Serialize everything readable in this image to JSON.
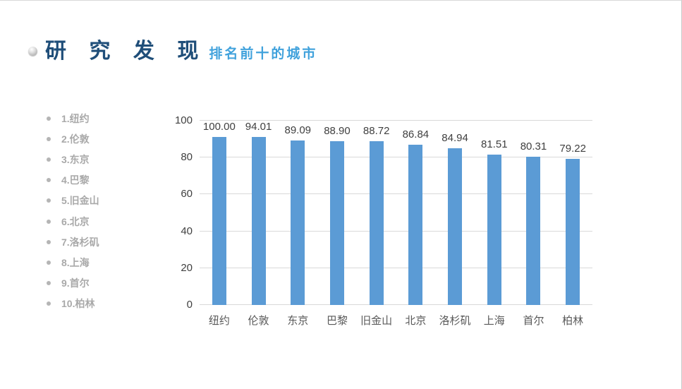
{
  "slide": {
    "title": "研 究 发 现",
    "subtitle": "排名前十的城市"
  },
  "sidebar": {
    "items": [
      "1.纽约",
      "2.伦敦",
      "3.东京",
      "4.巴黎",
      "5.旧金山",
      "6.北京",
      "7.洛杉矶",
      "8.上海",
      "9.首尔",
      "10.柏林"
    ]
  },
  "chart_data": {
    "type": "bar",
    "categories": [
      "纽约",
      "伦敦",
      "东京",
      "巴黎",
      "旧金山",
      "北京",
      "洛杉矶",
      "上海",
      "首尔",
      "柏林"
    ],
    "values": [
      100.0,
      94.01,
      89.09,
      88.9,
      88.72,
      86.84,
      84.94,
      81.51,
      80.31,
      79.22
    ],
    "value_labels": [
      "100.00",
      "94.01",
      "89.09",
      "88.90",
      "88.72",
      "86.84",
      "84.94",
      "81.51",
      "80.31",
      "79.22"
    ],
    "title": "",
    "xlabel": "",
    "ylabel": "",
    "ylim": [
      0,
      100
    ],
    "yticks": [
      0,
      20,
      40,
      60,
      80,
      100
    ],
    "grid": true,
    "legend": false,
    "bar_color": "#5B9BD5"
  },
  "colors": {
    "title": "#1F4E79",
    "subtitle": "#41A2DC",
    "bar": "#5B9BD5",
    "gridline": "#D9D9D9",
    "axis_text": "#404040",
    "category_text": "#595959",
    "sidebar_text": "#A9A9A9"
  }
}
